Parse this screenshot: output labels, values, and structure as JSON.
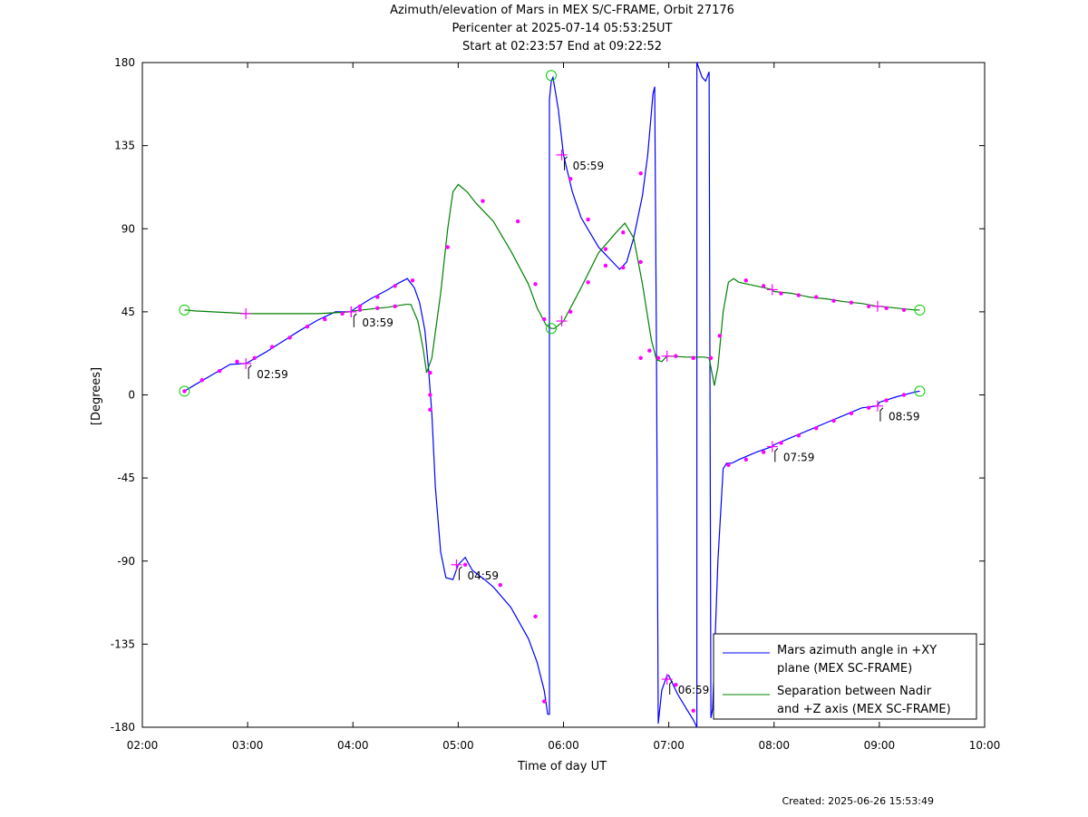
{
  "chart_data": {
    "type": "line",
    "title": "Azimuth/elevation of Mars in MEX S/C-FRAME,  Orbit 27176",
    "subtitle_1": "Pericenter at 2025-07-14 05:53:25UT",
    "subtitle_2": "Start at 02:23:57 End at 09:22:52",
    "xlabel": "Time of day UT",
    "ylabel": "[Degrees]",
    "created": "Created: 2025-06-26 15:53:49",
    "xlim": [
      "02:00",
      "10:00"
    ],
    "ylim": [
      -180,
      180
    ],
    "xticks": [
      "02:00",
      "03:00",
      "04:00",
      "05:00",
      "06:00",
      "07:00",
      "08:00",
      "09:00",
      "10:00"
    ],
    "yticks": [
      180,
      135,
      90,
      45,
      0,
      -45,
      -90,
      -135,
      -180
    ],
    "legend_position": "bottom-right",
    "series": [
      {
        "name": "Mars azimuth angle in +XY plane (MEX SC-FRAME)",
        "legend_line1": "Mars azimuth angle in +XY",
        "legend_line2": "plane (MEX SC-FRAME)",
        "color": "#0000ff",
        "points": [
          [
            "02:24",
            2
          ],
          [
            "02:30",
            5.5
          ],
          [
            "02:40",
            11
          ],
          [
            "02:50",
            16.5
          ],
          [
            "02:59",
            17
          ],
          [
            "03:00",
            17.5
          ],
          [
            "03:10",
            23
          ],
          [
            "03:20",
            29
          ],
          [
            "03:30",
            35
          ],
          [
            "03:40",
            40.5
          ],
          [
            "03:50",
            45
          ],
          [
            "03:59",
            45
          ],
          [
            "04:00",
            46
          ],
          [
            "04:10",
            52
          ],
          [
            "04:20",
            57
          ],
          [
            "04:25",
            60
          ],
          [
            "04:31",
            63
          ],
          [
            "04:35",
            58
          ],
          [
            "04:38",
            50
          ],
          [
            "04:41",
            35
          ],
          [
            "04:43",
            15
          ],
          [
            "04:45",
            -10
          ],
          [
            "04:47",
            -50
          ],
          [
            "04:50",
            -85
          ],
          [
            "04:53",
            -99
          ],
          [
            "04:57",
            -100
          ],
          [
            "05:00",
            -92
          ],
          [
            "05:04",
            -88
          ],
          [
            "05:08",
            -95
          ],
          [
            "05:15",
            -100
          ],
          [
            "05:20",
            -104
          ],
          [
            "05:30",
            -115
          ],
          [
            "05:40",
            -132
          ],
          [
            "05:45",
            -145
          ],
          [
            "05:49",
            -160
          ],
          [
            "05:51",
            -173
          ],
          [
            "05:52",
            -173
          ],
          [
            "05:52",
            160
          ],
          [
            "05:53",
            170
          ],
          [
            "05:54",
            172
          ],
          [
            "05:57",
            155
          ],
          [
            "06:00",
            130
          ],
          [
            "06:05",
            110
          ],
          [
            "06:10",
            96
          ],
          [
            "06:20",
            80
          ],
          [
            "06:30",
            70
          ],
          [
            "06:32",
            68
          ],
          [
            "06:36",
            72
          ],
          [
            "06:40",
            85
          ],
          [
            "06:45",
            108
          ],
          [
            "06:48",
            130
          ],
          [
            "06:51",
            163
          ],
          [
            "06:52",
            167
          ],
          [
            "06:53",
            20
          ],
          [
            "06:54",
            -178
          ],
          [
            "06:56",
            -160
          ],
          [
            "06:59",
            -152
          ],
          [
            "07:00",
            -152
          ],
          [
            "07:05",
            -162
          ],
          [
            "07:10",
            -170
          ],
          [
            "07:14",
            -176
          ],
          [
            "07:16",
            -180
          ],
          [
            "07:16",
            180
          ],
          [
            "07:19",
            172
          ],
          [
            "07:21",
            170
          ],
          [
            "07:23",
            175
          ],
          [
            "07:24",
            -175
          ],
          [
            "07:25",
            -170
          ],
          [
            "07:28",
            -90
          ],
          [
            "07:31",
            -40
          ],
          [
            "07:33",
            -37
          ],
          [
            "07:36",
            -37
          ],
          [
            "07:40",
            -35
          ],
          [
            "07:50",
            -31
          ],
          [
            "07:59",
            -28
          ],
          [
            "08:00",
            -27
          ],
          [
            "08:10",
            -23
          ],
          [
            "08:20",
            -19
          ],
          [
            "08:30",
            -15
          ],
          [
            "08:40",
            -11
          ],
          [
            "08:50",
            -7
          ],
          [
            "08:59",
            -6
          ],
          [
            "09:00",
            -4
          ],
          [
            "09:10",
            -1
          ],
          [
            "09:20",
            1.5
          ],
          [
            "09:23",
            2
          ]
        ]
      },
      {
        "name": "Separation between Nadir and +Z axis (MEX SC-FRAME)",
        "legend_line1": "Separation between Nadir",
        "legend_line2": "and +Z axis (MEX SC-FRAME)",
        "color": "#008000",
        "points": [
          [
            "02:24",
            46
          ],
          [
            "02:30",
            45.5
          ],
          [
            "02:40",
            45
          ],
          [
            "02:50",
            44.5
          ],
          [
            "02:59",
            44
          ],
          [
            "03:00",
            44
          ],
          [
            "03:10",
            44
          ],
          [
            "03:20",
            44
          ],
          [
            "03:30",
            44
          ],
          [
            "03:40",
            44
          ],
          [
            "03:50",
            44.5
          ],
          [
            "03:59",
            45
          ],
          [
            "04:00",
            45.5
          ],
          [
            "04:10",
            46.5
          ],
          [
            "04:20",
            47.5
          ],
          [
            "04:30",
            49
          ],
          [
            "04:33",
            49
          ],
          [
            "04:37",
            40
          ],
          [
            "04:40",
            25
          ],
          [
            "04:42",
            12
          ],
          [
            "04:45",
            20
          ],
          [
            "04:50",
            55
          ],
          [
            "04:54",
            90
          ],
          [
            "04:57",
            110
          ],
          [
            "05:00",
            114
          ],
          [
            "05:05",
            110
          ],
          [
            "05:10",
            104
          ],
          [
            "05:20",
            94
          ],
          [
            "05:30",
            78
          ],
          [
            "05:40",
            60
          ],
          [
            "05:45",
            47
          ],
          [
            "05:50",
            38
          ],
          [
            "05:53",
            36
          ],
          [
            "05:55",
            36
          ],
          [
            "06:00",
            40
          ],
          [
            "06:10",
            58
          ],
          [
            "06:20",
            77
          ],
          [
            "06:30",
            88
          ],
          [
            "06:35",
            93
          ],
          [
            "06:40",
            85
          ],
          [
            "06:45",
            60
          ],
          [
            "06:50",
            30
          ],
          [
            "06:53",
            19
          ],
          [
            "06:56",
            18
          ],
          [
            "06:59",
            21
          ],
          [
            "07:00",
            21
          ],
          [
            "07:10",
            20.5
          ],
          [
            "07:20",
            20.5
          ],
          [
            "07:23",
            20
          ],
          [
            "07:25",
            10
          ],
          [
            "07:26",
            5
          ],
          [
            "07:28",
            15
          ],
          [
            "07:31",
            45
          ],
          [
            "07:34",
            61
          ],
          [
            "07:37",
            63
          ],
          [
            "07:40",
            61
          ],
          [
            "07:50",
            59
          ],
          [
            "07:59",
            57
          ],
          [
            "08:00",
            56
          ],
          [
            "08:10",
            55
          ],
          [
            "08:20",
            53
          ],
          [
            "08:30",
            52
          ],
          [
            "08:40",
            50.5
          ],
          [
            "08:50",
            49.5
          ],
          [
            "08:59",
            48
          ],
          [
            "09:00",
            48
          ],
          [
            "09:10",
            47
          ],
          [
            "09:20",
            46
          ],
          [
            "09:23",
            46
          ]
        ]
      }
    ],
    "hour_markers": [
      {
        "label": "02:59",
        "time": "02:59",
        "y": 17
      },
      {
        "label": "03:59",
        "time": "03:59",
        "y": 45
      },
      {
        "label": "04:59",
        "time": "04:59",
        "y": -92
      },
      {
        "label": "05:59",
        "time": "05:59",
        "y": 130
      },
      {
        "label": "06:59",
        "time": "06:59",
        "y": -154
      },
      {
        "label": "07:59",
        "time": "07:59",
        "y": -28
      },
      {
        "label": "08:59",
        "time": "08:59",
        "y": -6
      }
    ],
    "cross_markers": [
      {
        "time": "02:59",
        "y": 44
      },
      {
        "time": "03:59",
        "y": 45
      },
      {
        "time": "05:59",
        "y": 40
      },
      {
        "time": "06:59",
        "y": 21
      },
      {
        "time": "07:59",
        "y": 57
      },
      {
        "time": "08:59",
        "y": 48
      }
    ],
    "dot_markers": [
      [
        "02:24",
        2
      ],
      [
        "02:34",
        8
      ],
      [
        "02:44",
        13
      ],
      [
        "02:54",
        18
      ],
      [
        "03:04",
        20
      ],
      [
        "03:14",
        26
      ],
      [
        "03:24",
        31
      ],
      [
        "03:34",
        37
      ],
      [
        "03:44",
        41
      ],
      [
        "03:54",
        44
      ],
      [
        "04:04",
        48
      ],
      [
        "04:14",
        53
      ],
      [
        "04:24",
        59
      ],
      [
        "04:34",
        62
      ],
      [
        "04:44",
        0
      ],
      [
        "04:44",
        -8
      ],
      [
        "04:54",
        80
      ],
      [
        "05:04",
        -92
      ],
      [
        "05:14",
        105
      ],
      [
        "05:24",
        -103
      ],
      [
        "05:34",
        94
      ],
      [
        "05:44",
        -120
      ],
      [
        "05:44",
        60
      ],
      [
        "05:49",
        -166
      ],
      [
        "06:04",
        117
      ],
      [
        "06:14",
        95
      ],
      [
        "06:14",
        61
      ],
      [
        "06:24",
        79
      ],
      [
        "06:34",
        88
      ],
      [
        "06:44",
        72
      ],
      [
        "06:44",
        120
      ],
      [
        "06:49",
        24
      ],
      [
        "07:04",
        -157
      ],
      [
        "07:14",
        20
      ],
      [
        "07:14",
        -171
      ],
      [
        "07:24",
        20
      ],
      [
        "07:29",
        32
      ],
      [
        "07:34",
        -38
      ],
      [
        "07:44",
        62
      ],
      [
        "07:44",
        -35
      ],
      [
        "07:54",
        59
      ],
      [
        "07:54",
        -31
      ],
      [
        "08:04",
        55
      ],
      [
        "08:04",
        -26
      ],
      [
        "08:14",
        54
      ],
      [
        "08:14",
        -22
      ],
      [
        "08:24",
        53
      ],
      [
        "08:24",
        -18
      ],
      [
        "08:34",
        51
      ],
      [
        "08:34",
        -14
      ],
      [
        "08:44",
        50
      ],
      [
        "08:44",
        -10
      ],
      [
        "08:54",
        48
      ],
      [
        "08:54",
        -7
      ],
      [
        "09:04",
        47
      ],
      [
        "09:04",
        -3
      ],
      [
        "09:14",
        46
      ],
      [
        "09:14",
        0
      ],
      [
        "04:44",
        12
      ],
      [
        "04:04",
        46
      ],
      [
        "04:14",
        47
      ],
      [
        "04:24",
        48
      ],
      [
        "05:49",
        41
      ],
      [
        "06:04",
        45
      ],
      [
        "06:24",
        70
      ],
      [
        "06:34",
        69
      ],
      [
        "06:44",
        20
      ],
      [
        "06:54",
        20
      ],
      [
        "07:04",
        21
      ],
      [
        "07:14",
        20
      ]
    ],
    "circle_markers": [
      {
        "time": "02:24",
        "y": 2
      },
      {
        "time": "02:24",
        "y": 46
      },
      {
        "time": "09:23",
        "y": 2
      },
      {
        "time": "09:23",
        "y": 46
      },
      {
        "time": "05:53",
        "y": 173
      },
      {
        "time": "05:53",
        "y": 36
      }
    ]
  },
  "colors": {
    "marker": "#ff00ff",
    "endpoint_circle": "#00cc00",
    "axis": "#000000"
  }
}
